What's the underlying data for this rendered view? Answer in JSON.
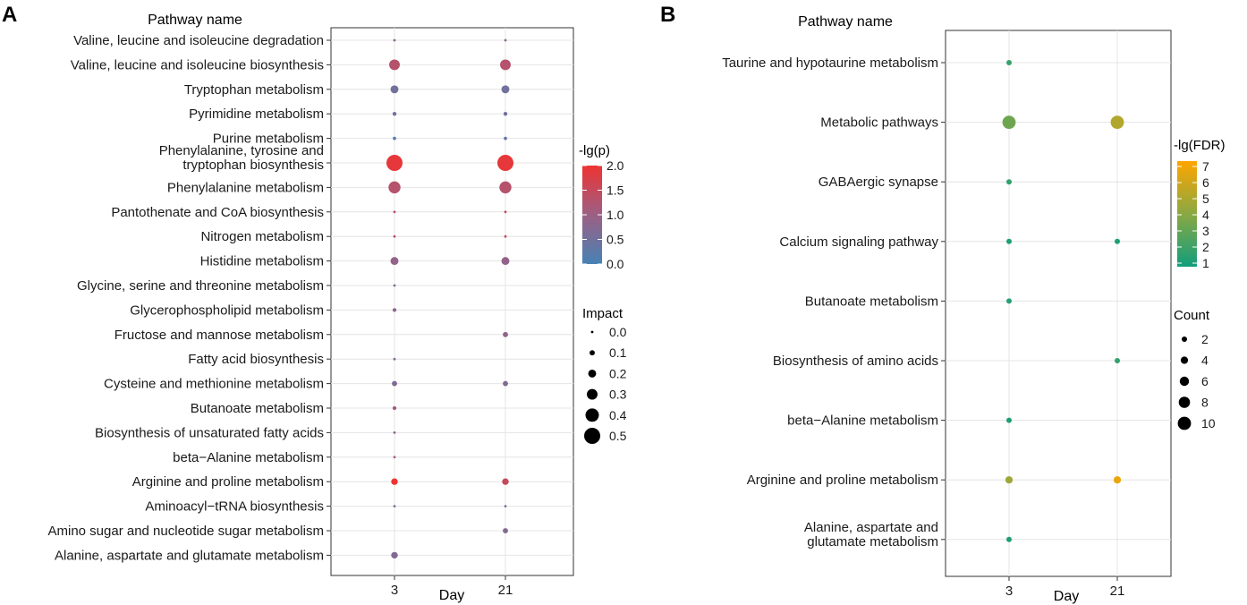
{
  "panels": [
    {
      "letter": "A"
    },
    {
      "letter": "B"
    }
  ],
  "chart_data": [
    {
      "type": "scatter",
      "panel": "A",
      "title": "Pathway name",
      "xlabel": "Day",
      "x_categories": [
        "3",
        "21"
      ],
      "categories": [
        "Valine, leucine and isoleucine degradation",
        "Valine, leucine and isoleucine biosynthesis",
        "Tryptophan metabolism",
        "Pyrimidine metabolism",
        "Purine metabolism",
        "Phenylalanine, tyrosine and tryptophan biosynthesis",
        "Phenylalanine metabolism",
        "Pantothenate and CoA biosynthesis",
        "Nitrogen metabolism",
        "Histidine metabolism",
        "Glycine, serine and threonine metabolism",
        "Glycerophospholipid metabolism",
        "Fructose and mannose metabolism",
        "Fatty acid biosynthesis",
        "Cysteine and methionine metabolism",
        "Butanoate metabolism",
        "Biosynthesis of unsaturated fatty acids",
        "beta−Alanine metabolism",
        "Arginine and proline metabolism",
        "Aminoacyl−tRNA biosynthesis",
        "Amino sugar and nucleotide sugar metabolism",
        "Alanine, aspartate and glutamate metabolism"
      ],
      "category_lines": [
        [
          "Valine, leucine and isoleucine degradation"
        ],
        [
          "Valine, leucine and isoleucine biosynthesis"
        ],
        [
          "Tryptophan metabolism"
        ],
        [
          "Pyrimidine metabolism"
        ],
        [
          "Purine metabolism"
        ],
        [
          "Phenylalanine, tyrosine and",
          "tryptophan biosynthesis"
        ],
        [
          "Phenylalanine metabolism"
        ],
        [
          "Pantothenate and CoA biosynthesis"
        ],
        [
          "Nitrogen metabolism"
        ],
        [
          "Histidine metabolism"
        ],
        [
          "Glycine, serine and threonine metabolism"
        ],
        [
          "Glycerophospholipid metabolism"
        ],
        [
          "Fructose and mannose metabolism"
        ],
        [
          "Fatty acid biosynthesis"
        ],
        [
          "Cysteine and methionine metabolism"
        ],
        [
          "Butanoate metabolism"
        ],
        [
          "Biosynthesis of unsaturated fatty acids"
        ],
        [
          "beta−Alanine metabolism"
        ],
        [
          "Arginine and proline metabolism"
        ],
        [
          "Aminoacyl−tRNA biosynthesis"
        ],
        [
          "Amino sugar and nucleotide sugar metabolism"
        ],
        [
          "Alanine, aspartate and glutamate metabolism"
        ]
      ],
      "points": [
        {
          "pathway": 0,
          "day": "3",
          "impact": 0.0,
          "neglog_p": 0.8
        },
        {
          "pathway": 0,
          "day": "21",
          "impact": 0.0,
          "neglog_p": 0.8
        },
        {
          "pathway": 1,
          "day": "3",
          "impact": 0.3,
          "neglog_p": 1.3
        },
        {
          "pathway": 1,
          "day": "21",
          "impact": 0.3,
          "neglog_p": 1.3
        },
        {
          "pathway": 2,
          "day": "3",
          "impact": 0.2,
          "neglog_p": 0.5
        },
        {
          "pathway": 2,
          "day": "21",
          "impact": 0.2,
          "neglog_p": 0.5
        },
        {
          "pathway": 3,
          "day": "3",
          "impact": 0.05,
          "neglog_p": 0.5
        },
        {
          "pathway": 3,
          "day": "21",
          "impact": 0.05,
          "neglog_p": 0.5
        },
        {
          "pathway": 4,
          "day": "3",
          "impact": 0.03,
          "neglog_p": 0.2
        },
        {
          "pathway": 4,
          "day": "21",
          "impact": 0.03,
          "neglog_p": 0.35
        },
        {
          "pathway": 5,
          "day": "3",
          "impact": 0.5,
          "neglog_p": 1.9
        },
        {
          "pathway": 5,
          "day": "21",
          "impact": 0.5,
          "neglog_p": 1.9
        },
        {
          "pathway": 6,
          "day": "3",
          "impact": 0.35,
          "neglog_p": 1.3
        },
        {
          "pathway": 6,
          "day": "21",
          "impact": 0.35,
          "neglog_p": 1.3
        },
        {
          "pathway": 7,
          "day": "3",
          "impact": 0.0,
          "neglog_p": 1.3
        },
        {
          "pathway": 7,
          "day": "21",
          "impact": 0.0,
          "neglog_p": 1.5
        },
        {
          "pathway": 8,
          "day": "3",
          "impact": 0.0,
          "neglog_p": 1.3
        },
        {
          "pathway": 8,
          "day": "21",
          "impact": 0.0,
          "neglog_p": 1.5
        },
        {
          "pathway": 9,
          "day": "3",
          "impact": 0.2,
          "neglog_p": 0.9
        },
        {
          "pathway": 9,
          "day": "21",
          "impact": 0.2,
          "neglog_p": 0.9
        },
        {
          "pathway": 10,
          "day": "3",
          "impact": 0.0,
          "neglog_p": 0.6
        },
        {
          "pathway": 11,
          "day": "3",
          "impact": 0.05,
          "neglog_p": 0.8
        },
        {
          "pathway": 12,
          "day": "21",
          "impact": 0.1,
          "neglog_p": 0.9
        },
        {
          "pathway": 13,
          "day": "3",
          "impact": 0.0,
          "neglog_p": 0.7
        },
        {
          "pathway": 14,
          "day": "3",
          "impact": 0.1,
          "neglog_p": 0.7
        },
        {
          "pathway": 14,
          "day": "21",
          "impact": 0.1,
          "neglog_p": 0.7
        },
        {
          "pathway": 15,
          "day": "3",
          "impact": 0.05,
          "neglog_p": 1.0
        },
        {
          "pathway": 16,
          "day": "3",
          "impact": 0.0,
          "neglog_p": 0.8
        },
        {
          "pathway": 17,
          "day": "3",
          "impact": 0.0,
          "neglog_p": 1.0
        },
        {
          "pathway": 18,
          "day": "3",
          "impact": 0.15,
          "neglog_p": 2.0
        },
        {
          "pathway": 18,
          "day": "21",
          "impact": 0.15,
          "neglog_p": 1.5
        },
        {
          "pathway": 19,
          "day": "3",
          "impact": 0.0,
          "neglog_p": 0.6
        },
        {
          "pathway": 19,
          "day": "21",
          "impact": 0.0,
          "neglog_p": 0.6
        },
        {
          "pathway": 20,
          "day": "21",
          "impact": 0.1,
          "neglog_p": 0.7
        },
        {
          "pathway": 21,
          "day": "3",
          "impact": 0.15,
          "neglog_p": 0.7
        }
      ],
      "color_legend": {
        "title": "-lg(p)",
        "range": [
          0,
          2
        ],
        "ticks": [
          "2.0",
          "1.5",
          "1.0",
          "0.5",
          "0.0"
        ],
        "low_color": "#4682b4",
        "mid_color": "#9c5f84",
        "high_color": "#ee3333"
      },
      "size_legend": {
        "title": "Impact",
        "labels": [
          "0.0",
          "0.1",
          "0.2",
          "0.3",
          "0.4",
          "0.5"
        ],
        "values": [
          0.0,
          0.1,
          0.2,
          0.3,
          0.4,
          0.5
        ]
      }
    },
    {
      "type": "scatter",
      "panel": "B",
      "title": "Pathway name",
      "xlabel": "Day",
      "x_categories": [
        "3",
        "21"
      ],
      "categories": [
        "Taurine and hypotaurine metabolism",
        "Metabolic pathways",
        "GABAergic synapse",
        "Calcium signaling pathway",
        "Butanoate metabolism",
        "Biosynthesis of amino acids",
        "beta−Alanine metabolism",
        "Arginine and proline metabolism",
        "Alanine, aspartate and glutamate metabolism"
      ],
      "category_lines": [
        [
          "Taurine and hypotaurine metabolism"
        ],
        [
          "Metabolic pathways"
        ],
        [
          "GABAergic synapse"
        ],
        [
          "Calcium signaling pathway"
        ],
        [
          "Butanoate metabolism"
        ],
        [
          "Biosynthesis of amino acids"
        ],
        [
          "beta−Alanine metabolism"
        ],
        [
          "Arginine and proline metabolism"
        ],
        [
          "Alanine, aspartate and",
          "glutamate metabolism"
        ]
      ],
      "points": [
        {
          "pathway": 0,
          "day": "3",
          "count": 2,
          "neglog_fdr": 2.0
        },
        {
          "pathway": 1,
          "day": "3",
          "count": 10,
          "neglog_fdr": 3.3
        },
        {
          "pathway": 1,
          "day": "21",
          "count": 10,
          "neglog_fdr": 5.0
        },
        {
          "pathway": 2,
          "day": "3",
          "count": 2,
          "neglog_fdr": 1.8
        },
        {
          "pathway": 3,
          "day": "3",
          "count": 2,
          "neglog_fdr": 1.3
        },
        {
          "pathway": 3,
          "day": "21",
          "count": 2,
          "neglog_fdr": 1.3
        },
        {
          "pathway": 4,
          "day": "3",
          "count": 2,
          "neglog_fdr": 1.5
        },
        {
          "pathway": 5,
          "day": "21",
          "count": 2,
          "neglog_fdr": 1.8
        },
        {
          "pathway": 6,
          "day": "3",
          "count": 2,
          "neglog_fdr": 1.3
        },
        {
          "pathway": 7,
          "day": "3",
          "count": 4,
          "neglog_fdr": 4.5
        },
        {
          "pathway": 7,
          "day": "21",
          "count": 4,
          "neglog_fdr": 6.5
        },
        {
          "pathway": 8,
          "day": "3",
          "count": 2,
          "neglog_fdr": 1.3
        }
      ],
      "color_legend": {
        "title": "-lg(FDR)",
        "range": [
          1,
          7
        ],
        "ticks": [
          "7",
          "6",
          "5",
          "4",
          "3",
          "2",
          "1"
        ],
        "low_color": "#119e7c",
        "mid_color": "#8aa843",
        "high_color": "#ffa500"
      },
      "size_legend": {
        "title": "Count",
        "labels": [
          "2",
          "4",
          "6",
          "8",
          "10"
        ],
        "values": [
          2,
          4,
          6,
          8,
          10
        ]
      }
    }
  ]
}
